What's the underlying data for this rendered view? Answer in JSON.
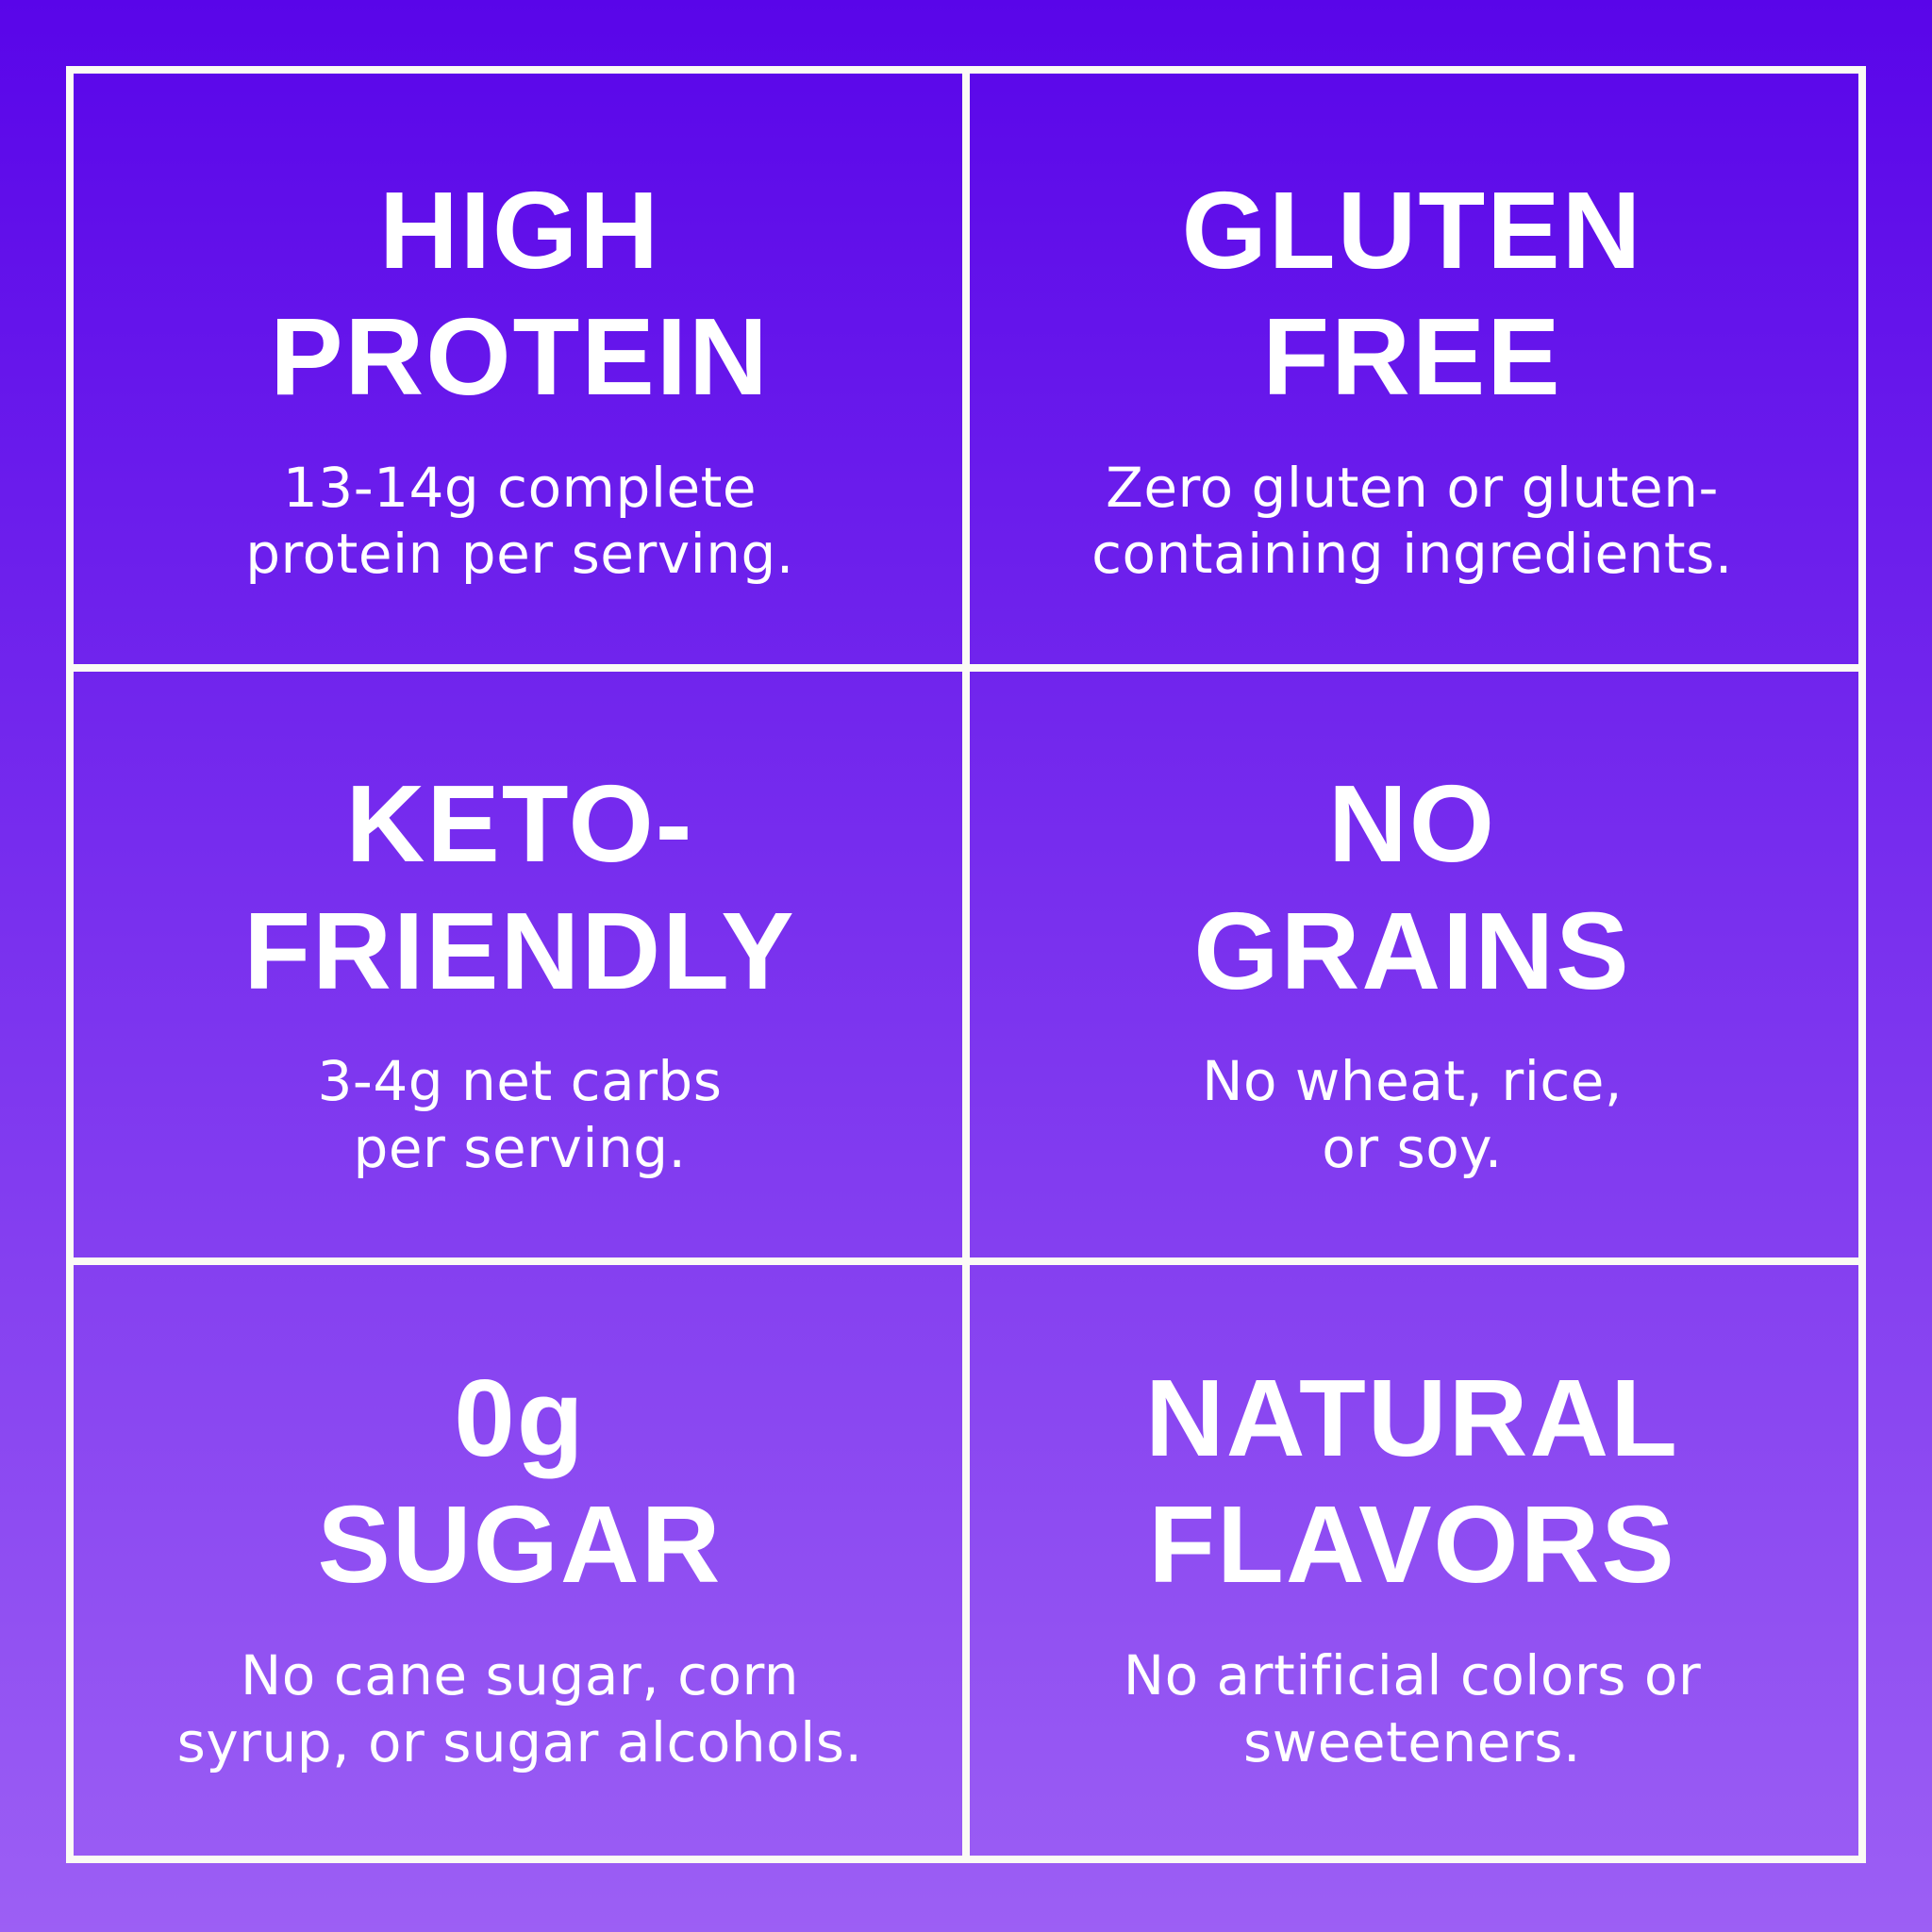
{
  "colors": {
    "gradient_top": "#5905E9",
    "gradient_bottom": "#9C5FF4",
    "grid_line": "#FBFBF5",
    "text": "#FFFFFF"
  },
  "cells": [
    {
      "id": "high-protein",
      "title_line1": "HIGH",
      "title_line2": "PROTEIN",
      "desc_line1": "13-14g complete",
      "desc_line2": "protein per serving."
    },
    {
      "id": "gluten-free",
      "title_line1": "GLUTEN",
      "title_line2": "FREE",
      "desc_line1": "Zero gluten or gluten-",
      "desc_line2": "containing ingredients."
    },
    {
      "id": "keto-friendly",
      "title_line1": "KETO-",
      "title_line2": "FRIENDLY",
      "desc_line1": "3-4g net carbs",
      "desc_line2": "per serving."
    },
    {
      "id": "no-grains",
      "title_line1": "NO",
      "title_line2": "GRAINS",
      "desc_line1": "No wheat, rice,",
      "desc_line2": "or soy."
    },
    {
      "id": "zero-sugar",
      "title_line1": "0g",
      "title_line2": "SUGAR",
      "desc_line1": "No cane sugar, corn",
      "desc_line2": "syrup, or sugar alcohols."
    },
    {
      "id": "natural-flavors",
      "title_line1": "NATURAL",
      "title_line2": "FLAVORS",
      "desc_line1": "No artificial colors or",
      "desc_line2": "sweeteners."
    }
  ]
}
